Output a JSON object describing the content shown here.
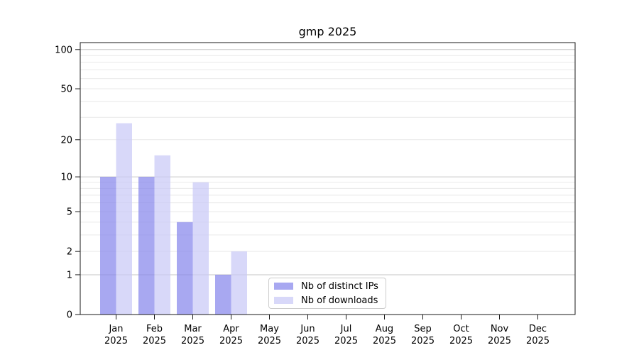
{
  "title": "gmp 2025",
  "chart_data": {
    "type": "bar",
    "title": "gmp 2025",
    "categories": [
      "Jan",
      "Feb",
      "Mar",
      "Apr",
      "May",
      "Jun",
      "Jul",
      "Aug",
      "Sep",
      "Oct",
      "Nov",
      "Dec"
    ],
    "category_year": "2025",
    "series": [
      {
        "name": "Nb of distinct IPs",
        "key": "distinct-ips",
        "color": "#8383eb",
        "alpha": 0.7,
        "values": [
          10,
          10,
          4,
          1,
          0,
          0,
          0,
          0,
          0,
          0,
          0,
          0
        ]
      },
      {
        "name": "Nb of downloads",
        "key": "downloads",
        "color": "#c7c7f6",
        "alpha": 0.7,
        "values": [
          27,
          15,
          9,
          2,
          0,
          0,
          0,
          0,
          0,
          0,
          0,
          0
        ]
      }
    ],
    "xlabel": "",
    "ylabel": "",
    "yscale": "log10(value+1)",
    "yticks": [
      0,
      1,
      2,
      5,
      10,
      20,
      50,
      100
    ],
    "ylim": [
      0,
      113
    ],
    "major_gridline_values": [
      1,
      10,
      100
    ],
    "minor_gridline_values": [
      2,
      3,
      4,
      5,
      6,
      7,
      8,
      9,
      20,
      30,
      40,
      50,
      60,
      70,
      80,
      90
    ],
    "grid": true,
    "legend_position": "lower center"
  },
  "style": {
    "minor_grid_color": "#e9e9e9",
    "major_grid_color": "#c6c6c6",
    "spine_color": "#1a1a1a",
    "tick_color": "#1a1a1a",
    "text_color": "#000000",
    "background": "#ffffff"
  }
}
